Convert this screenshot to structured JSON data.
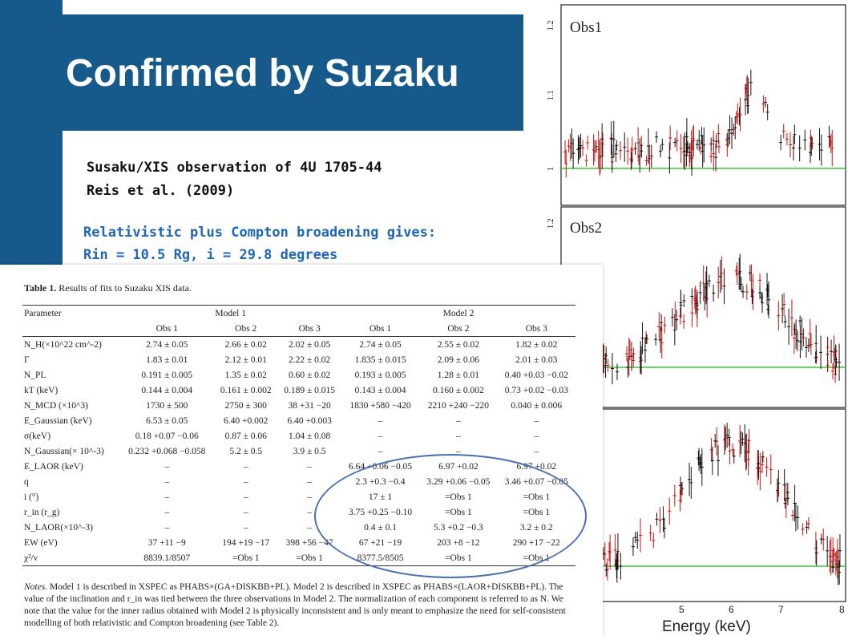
{
  "slide": {
    "title": "Confirmed by Suzaku",
    "obs_line1": "Susaku/XIS observation of 4U 1705-44",
    "obs_line2": "Reis et al. (2009)",
    "result_line1": "Relativistic plus Compton broadening gives:",
    "result_line2": "Rin = 10.5 Rg,  i = 29.8 degrees",
    "colors": {
      "title_bg": "#155a8a",
      "accent_text": "#1e66b8",
      "ellipse": "#4a70b0"
    }
  },
  "table": {
    "caption_bold": "Table 1.",
    "caption_rest": "Results of fits to Suzaku XIS data.",
    "parameter_header": "Parameter",
    "model1_header": "Model 1",
    "model2_header": "Model 2",
    "obs_headers": [
      "Obs 1",
      "Obs 2",
      "Obs 3",
      "Obs 1",
      "Obs 2",
      "Obs 3"
    ],
    "rows": [
      {
        "param": "N_H(×10^22 cm^-2)",
        "cells": [
          "2.74 ± 0.05",
          "2.66 ± 0.02",
          "2.02 ± 0.05",
          "2.74 ± 0.05",
          "2.55 ± 0.02",
          "1.82 ± 0.02"
        ]
      },
      {
        "param": "Γ",
        "cells": [
          "1.83 ± 0.01",
          "2.12 ± 0.01",
          "2.22 ± 0.02",
          "1.835 ± 0.015",
          "2.09 ± 0.06",
          "2.01 ± 0.03"
        ]
      },
      {
        "param": "N_PL",
        "cells": [
          "0.191 ± 0.005",
          "1.35 ± 0.02",
          "0.60 ± 0.02",
          "0.193 ± 0.005",
          "1.28 ± 0.01",
          "0.40 +0.03 −0.02"
        ]
      },
      {
        "param": "kT (keV)",
        "cells": [
          "0.144 ± 0.004",
          "0.161 ± 0.002",
          "0.189 ± 0.015",
          "0.143 ± 0.004",
          "0.160 ± 0.002",
          "0.73 +0.02 −0.03"
        ]
      },
      {
        "param": "N_MCD (×10^3)",
        "cells": [
          "1730 ± 500",
          "2750 ± 300",
          "38 +31 −20",
          "1830 +580 −420",
          "2210 +240 −220",
          "0.040 ± 0.006"
        ]
      },
      {
        "param": "E_Gaussian (keV)",
        "cells": [
          "6.53 ± 0.05",
          "6.40 +0.002",
          "6.40 +0.003",
          "–",
          "–",
          "–"
        ]
      },
      {
        "param": "σ(keV)",
        "cells": [
          "0.18 +0.07 −0.06",
          "0.87 ± 0.06",
          "1.04 ± 0.08",
          "–",
          "–",
          "–"
        ]
      },
      {
        "param": "N_Gaussian(× 10^-3)",
        "cells": [
          "0.232 +0.068 −0.058",
          "5.2 ± 0.5",
          "3.9 ± 0.5",
          "–",
          "–",
          "–"
        ]
      },
      {
        "param": "E_LAOR (keV)",
        "cells": [
          "–",
          "–",
          "–",
          "6.64 +0.06 −0.05",
          "6.97 +0.02",
          "6.97 +0.02"
        ]
      },
      {
        "param": "q",
        "cells": [
          "–",
          "–",
          "–",
          "2.3 +0.3 −0.4",
          "3.29 +0.06 −0.05",
          "3.46 +0.07 −0.05"
        ]
      },
      {
        "param": "i (°)",
        "cells": [
          "–",
          "–",
          "–",
          "17 ± 1",
          "=Obs 1",
          "=Obs 1"
        ]
      },
      {
        "param": "r_in (r_g)",
        "cells": [
          "–",
          "–",
          "–",
          "3.75 +0.25 −0.10",
          "=Obs 1",
          "=Obs 1"
        ]
      },
      {
        "param": "N_LAOR(×10^-3)",
        "cells": [
          "–",
          "–",
          "–",
          "0.4 ± 0.1",
          "5.3 +0.2 −0.3",
          "3.2 ± 0.2"
        ]
      },
      {
        "param": "EW (eV)",
        "cells": [
          "37 +11 −9",
          "194 +19 −17",
          "398 +56 −47",
          "67 +21 −19",
          "203 +8 −12",
          "290 +17 −22"
        ]
      },
      {
        "param": "χ²/ν",
        "cells": [
          "8839.1/8507",
          "=Obs 1",
          "=Obs 1",
          "8377.5/8505",
          "=Obs 1",
          "=Obs 1"
        ]
      }
    ],
    "notes_label": "Notes.",
    "notes_text": "Model 1 is described in XSPEC as PHABS×(GA+DISKBB+PL). Model 2 is described in XSPEC as PHABS×(LAOR+DISKBB+PL). The value of the inclination and r_in was tied between the three observations in Model 2. The normalization of each component is referred to as N. We note that the value for the inner radius obtained with Model 2 is physically inconsistent and is only meant to emphasize the need for self-consistent modelling of both relativistic and Compton broadening (see Table 2)."
  },
  "plots": {
    "panel_labels": [
      "Obs1",
      "Obs2"
    ],
    "y_ticks_panel1": [
      "1.2",
      "1.1",
      "1"
    ],
    "y_ticks_panel2": [
      "1.2"
    ],
    "x_ticks": [
      "5",
      "6",
      "7",
      "8"
    ],
    "xlabel": "Energy (keV)",
    "colors": {
      "data_black": "#111111",
      "data_red": "#cc1111",
      "unity_line": "#33cc33"
    }
  }
}
